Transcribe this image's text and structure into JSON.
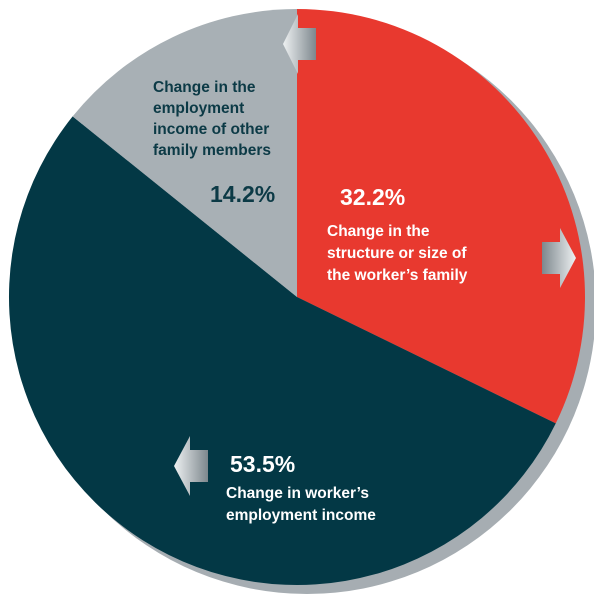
{
  "chart_data": {
    "type": "pie",
    "title": "",
    "start_angle_deg": 0,
    "direction": "clockwise",
    "slices": [
      {
        "label_lines": [
          "Change in the",
          "structure or size of",
          "the worker’s family"
        ],
        "value": 32.2,
        "value_label": "32.2%",
        "color": "#e8392f",
        "text_color": "#ffffff"
      },
      {
        "label_lines": [
          "Change in worker’s",
          "employment income"
        ],
        "value": 53.5,
        "value_label": "53.5%",
        "color": "#033845",
        "text_color": "#ffffff"
      },
      {
        "label_lines": [
          "Change in the",
          "employment",
          "income of other",
          "family members"
        ],
        "value": 14.2,
        "value_label": "14.2%",
        "color": "#a8b0b5",
        "text_color": "#0c3a46"
      }
    ],
    "shadow_color": "#a6adb2",
    "arrow_color": "#8c969c",
    "legend": "none"
  }
}
